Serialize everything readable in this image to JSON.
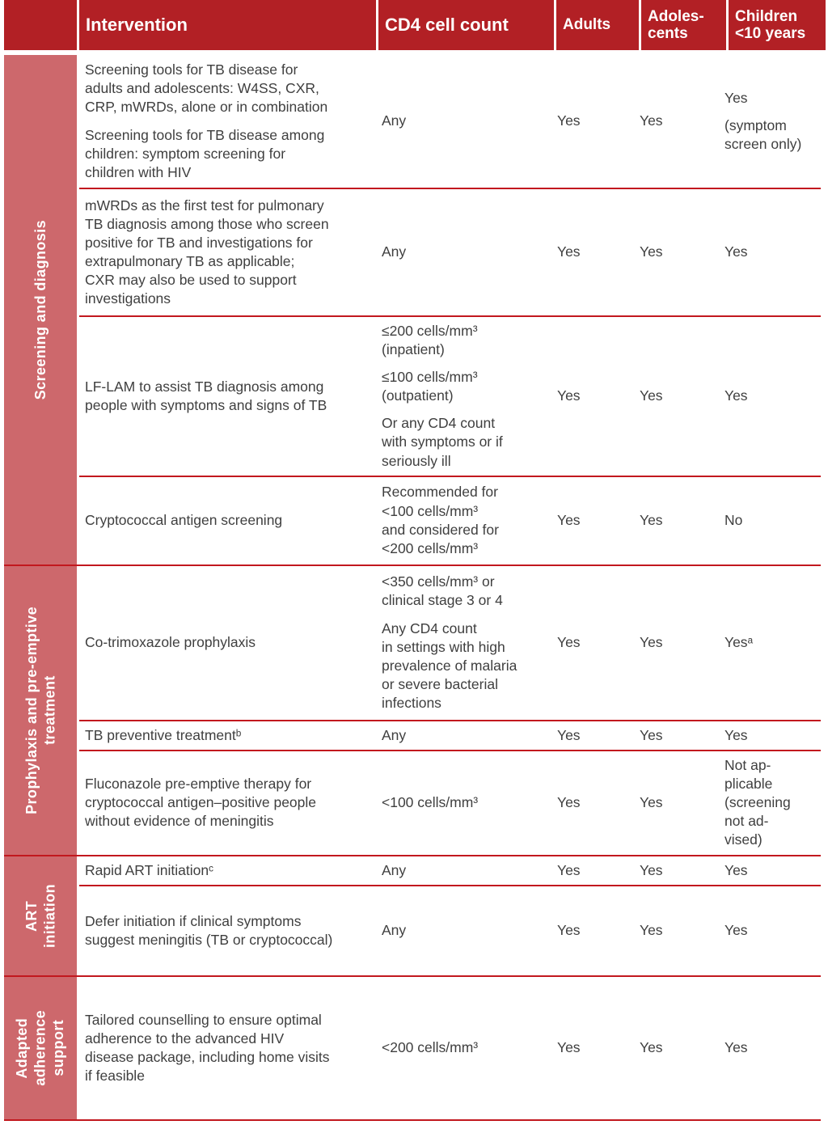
{
  "table": {
    "header": {
      "corner": "",
      "intervention": "Intervention",
      "cd4": "CD4 cell count",
      "adults": "Adults",
      "adolescents": "Adoles-\ncents",
      "children": "Children\n<10 years"
    },
    "sections": [
      {
        "label": "Screening and diagnosis",
        "rows": [
          {
            "intervention": [
              "Screening tools for TB disease for\nadults and adolescents: W4SS, CXR,\nCRP, mWRDs, alone or in combination",
              "Screening tools for TB disease among\nchildren: symptom screening for\nchildren with HIV"
            ],
            "cd4": [
              "Any"
            ],
            "adults": "Yes",
            "adolescents": "Yes",
            "children": [
              "Yes",
              "(symptom\nscreen only)"
            ]
          },
          {
            "intervention": [
              "mWRDs as the first test for pulmonary\nTB diagnosis among those who screen\npositive for TB and investigations for\nextrapulmonary TB as applicable;\nCXR may also be used to support\ninvestigations"
            ],
            "cd4": [
              "Any"
            ],
            "adults": "Yes",
            "adolescents": "Yes",
            "children": [
              "Yes"
            ]
          },
          {
            "intervention": [
              "LF-LAM to assist TB diagnosis among\npeople with symptoms and signs of TB"
            ],
            "cd4": [
              "≤200 cells/mm³\n(inpatient)",
              "≤100 cells/mm³\n(outpatient)",
              "Or any CD4 count\nwith symptoms or if\nseriously ill"
            ],
            "adults": "Yes",
            "adolescents": "Yes",
            "children": [
              "Yes"
            ]
          },
          {
            "intervention": [
              "Cryptococcal antigen screening"
            ],
            "cd4": [
              "Recommended for\n<100 cells/mm³\nand considered for\n<200 cells/mm³"
            ],
            "adults": "Yes",
            "adolescents": "Yes",
            "children": [
              "No"
            ]
          }
        ]
      },
      {
        "label": "Prophylaxis and pre-emptive\ntreatment",
        "rows": [
          {
            "intervention": [
              "Co-trimoxazole prophylaxis"
            ],
            "cd4": [
              "<350 cells/mm³ or\nclinical stage 3 or 4",
              "Any CD4 count\nin settings with high\nprevalence of malaria\nor severe bacterial\ninfections"
            ],
            "adults": "Yes",
            "adolescents": "Yes",
            "children": [
              "Yesᵃ"
            ]
          },
          {
            "intervention": [
              "TB preventive treatmentᵇ"
            ],
            "cd4": [
              "Any"
            ],
            "adults": "Yes",
            "adolescents": "Yes",
            "children": [
              "Yes"
            ]
          },
          {
            "intervention": [
              "Fluconazole pre-emptive therapy for\ncryptococcal antigen–positive people\nwithout evidence of meningitis"
            ],
            "cd4": [
              "<100 cells/mm³"
            ],
            "adults": "Yes",
            "adolescents": "Yes",
            "children": [
              "Not ap-\nplicable\n(screening\nnot ad-\nvised)"
            ]
          }
        ]
      },
      {
        "label": "ART\ninitiation",
        "rows": [
          {
            "intervention": [
              "Rapid ART initiationᶜ"
            ],
            "cd4": [
              "Any"
            ],
            "adults": "Yes",
            "adolescents": "Yes",
            "children": [
              "Yes"
            ]
          },
          {
            "intervention": [
              "Defer initiation if clinical symptoms\nsuggest meningitis (TB or cryptococcal)"
            ],
            "cd4": [
              "Any"
            ],
            "adults": "Yes",
            "adolescents": "Yes",
            "children": [
              "Yes"
            ]
          }
        ]
      },
      {
        "label": "Adapted\nadherence\nsupport",
        "rows": [
          {
            "intervention": [
              "Tailored counselling to ensure optimal\nadherence to the advanced HIV\ndisease package, including home visits\nif feasible"
            ],
            "cd4": [
              "<200 cells/mm³"
            ],
            "adults": "Yes",
            "adolescents": "Yes",
            "children": [
              "Yes"
            ]
          }
        ]
      }
    ]
  },
  "colors": {
    "header_bg": "#b22025",
    "sidebar_bg": "#cd686c",
    "separator_line": "#c2181e",
    "body_text": "#3f3f3f"
  }
}
